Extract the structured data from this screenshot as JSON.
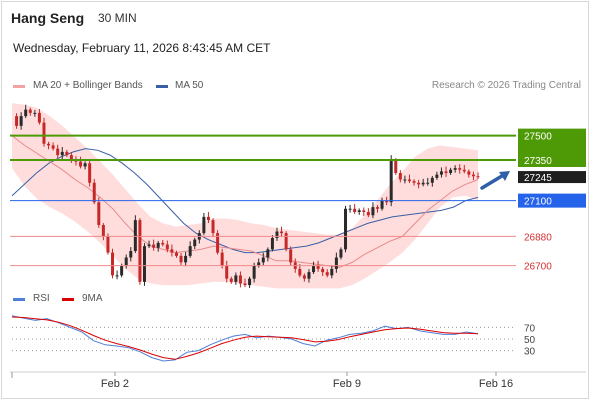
{
  "header": {
    "symbol": "Hang Seng",
    "timeframe": "30 MIN",
    "datetime": "Wednesday, February 11, 2026 8:43:45 AM CET"
  },
  "legend": {
    "bollinger_label": "MA 20 + Bollinger Bands",
    "ma50_label": "MA 50",
    "credit": "Research © 2026 Trading Central",
    "rsi_label": "RSI",
    "rsi_ma_label": "9MA"
  },
  "colors": {
    "up_candle": "#2a2a2a",
    "down_candle": "#c62828",
    "bollinger_band": "#ffd9d9",
    "ma20": "#e88a8a",
    "ma50": "#3a5fa6",
    "resistance": "#4e9a06",
    "pivot": "#2563eb",
    "support": "#f08a8a",
    "rsi": "#4f7fd6",
    "rsi_ma": "#dd0000",
    "arrow": "#2e5fa8"
  },
  "chart_data": [
    {
      "type": "candlestick",
      "x_ticks": [
        "Feb 2",
        "Feb 9",
        "Feb 16"
      ],
      "y_range": [
        26550,
        27750
      ],
      "last_price": 27245,
      "levels": [
        {
          "label": "27500",
          "value": 27500,
          "kind": "resistance"
        },
        {
          "label": "27350",
          "value": 27350,
          "kind": "resistance"
        },
        {
          "label": "27100",
          "value": 27100,
          "kind": "pivot"
        },
        {
          "label": "26880",
          "value": 26880,
          "kind": "support"
        },
        {
          "label": "26700",
          "value": 26700,
          "kind": "support"
        }
      ],
      "price_path": [
        27620,
        27560,
        27620,
        27660,
        27640,
        27640,
        27580,
        27450,
        27440,
        27420,
        27380,
        27400,
        27380,
        27350,
        27340,
        27310,
        27330,
        27210,
        27090,
        26950,
        26880,
        26780,
        26640,
        26640,
        26700,
        26750,
        26790,
        26980,
        26600,
        26820,
        26830,
        26810,
        26840,
        26830,
        26800,
        26780,
        26760,
        26720,
        26760,
        26820,
        26860,
        26900,
        27000,
        26980,
        26900,
        26780,
        26700,
        26620,
        26600,
        26640,
        26590,
        26580,
        26620,
        26700,
        26720,
        26750,
        26800,
        26870,
        26910,
        26900,
        26800,
        26720,
        26680,
        26640,
        26620,
        26660,
        26700,
        26680,
        26660,
        26640,
        26680,
        26750,
        26800,
        27050,
        27050,
        27030,
        27040,
        27030,
        27010,
        27060,
        27050,
        27100,
        27090,
        27350,
        27270,
        27230,
        27230,
        27220,
        27210,
        27200,
        27210,
        27210,
        27240,
        27260,
        27280,
        27270,
        27290,
        27300,
        27290,
        27280,
        27260,
        27250,
        27245
      ],
      "ma20": [
        27500,
        27440,
        27390,
        27340,
        27290,
        27230,
        27180,
        27120,
        27050,
        26960,
        26880,
        26820,
        26800,
        26780,
        26790,
        26800,
        26820,
        26810,
        26800,
        26790,
        26760,
        26730,
        26730,
        26720,
        26710,
        26700,
        26690,
        26720,
        26770,
        26810,
        26850,
        26880,
        26960,
        27040,
        27100,
        27160,
        27200,
        27230
      ],
      "ma50": [
        27130,
        27200,
        27270,
        27330,
        27370,
        27400,
        27420,
        27410,
        27380,
        27330,
        27270,
        27200,
        27120,
        27040,
        26960,
        26900,
        26860,
        26830,
        26800,
        26780,
        26780,
        26790,
        26800,
        26810,
        26820,
        26840,
        26870,
        26900,
        26930,
        26960,
        26980,
        27000,
        27010,
        27020,
        27030,
        27040,
        27060,
        27100,
        27120
      ],
      "bb_upper": [
        27700,
        27690,
        27670,
        27620,
        27560,
        27490,
        27420,
        27340,
        27260,
        27170,
        27080,
        27000,
        26960,
        26940,
        26950,
        26960,
        26990,
        26990,
        26980,
        26960,
        26950,
        26930,
        26920,
        26910,
        26900,
        26890,
        26890,
        26930,
        27010,
        27100,
        27200,
        27280,
        27370,
        27420,
        27440,
        27430,
        27420,
        27410
      ],
      "bb_lower": [
        27300,
        27190,
        27110,
        27060,
        27020,
        26970,
        26910,
        26840,
        26760,
        26680,
        26620,
        26590,
        26580,
        26580,
        26580,
        26590,
        26600,
        26600,
        26590,
        26580,
        26570,
        26560,
        26560,
        26560,
        26560,
        26560,
        26560,
        26580,
        26620,
        26670,
        26720,
        26780,
        26860,
        26960,
        27060,
        27120,
        27130,
        27100
      ]
    },
    {
      "type": "line",
      "name": "RSI",
      "y_ticks": [
        "70",
        "50",
        "30"
      ],
      "y_range": [
        0,
        100
      ],
      "rsi": [
        90,
        86,
        82,
        85,
        78,
        70,
        62,
        47,
        40,
        38,
        35,
        28,
        18,
        12,
        14,
        27,
        30,
        40,
        48,
        55,
        58,
        52,
        55,
        53,
        50,
        42,
        38,
        48,
        52,
        58,
        60,
        64,
        72,
        68,
        70,
        64,
        61,
        58,
        58,
        62,
        59
      ],
      "rsi_ma": [
        88,
        87,
        85,
        83,
        79,
        73,
        65,
        56,
        48,
        42,
        37,
        31,
        24,
        18,
        15,
        20,
        26,
        34,
        42,
        48,
        53,
        55,
        54,
        53,
        52,
        49,
        45,
        46,
        49,
        54,
        58,
        62,
        66,
        68,
        69,
        67,
        64,
        61,
        60,
        60,
        59
      ]
    }
  ]
}
